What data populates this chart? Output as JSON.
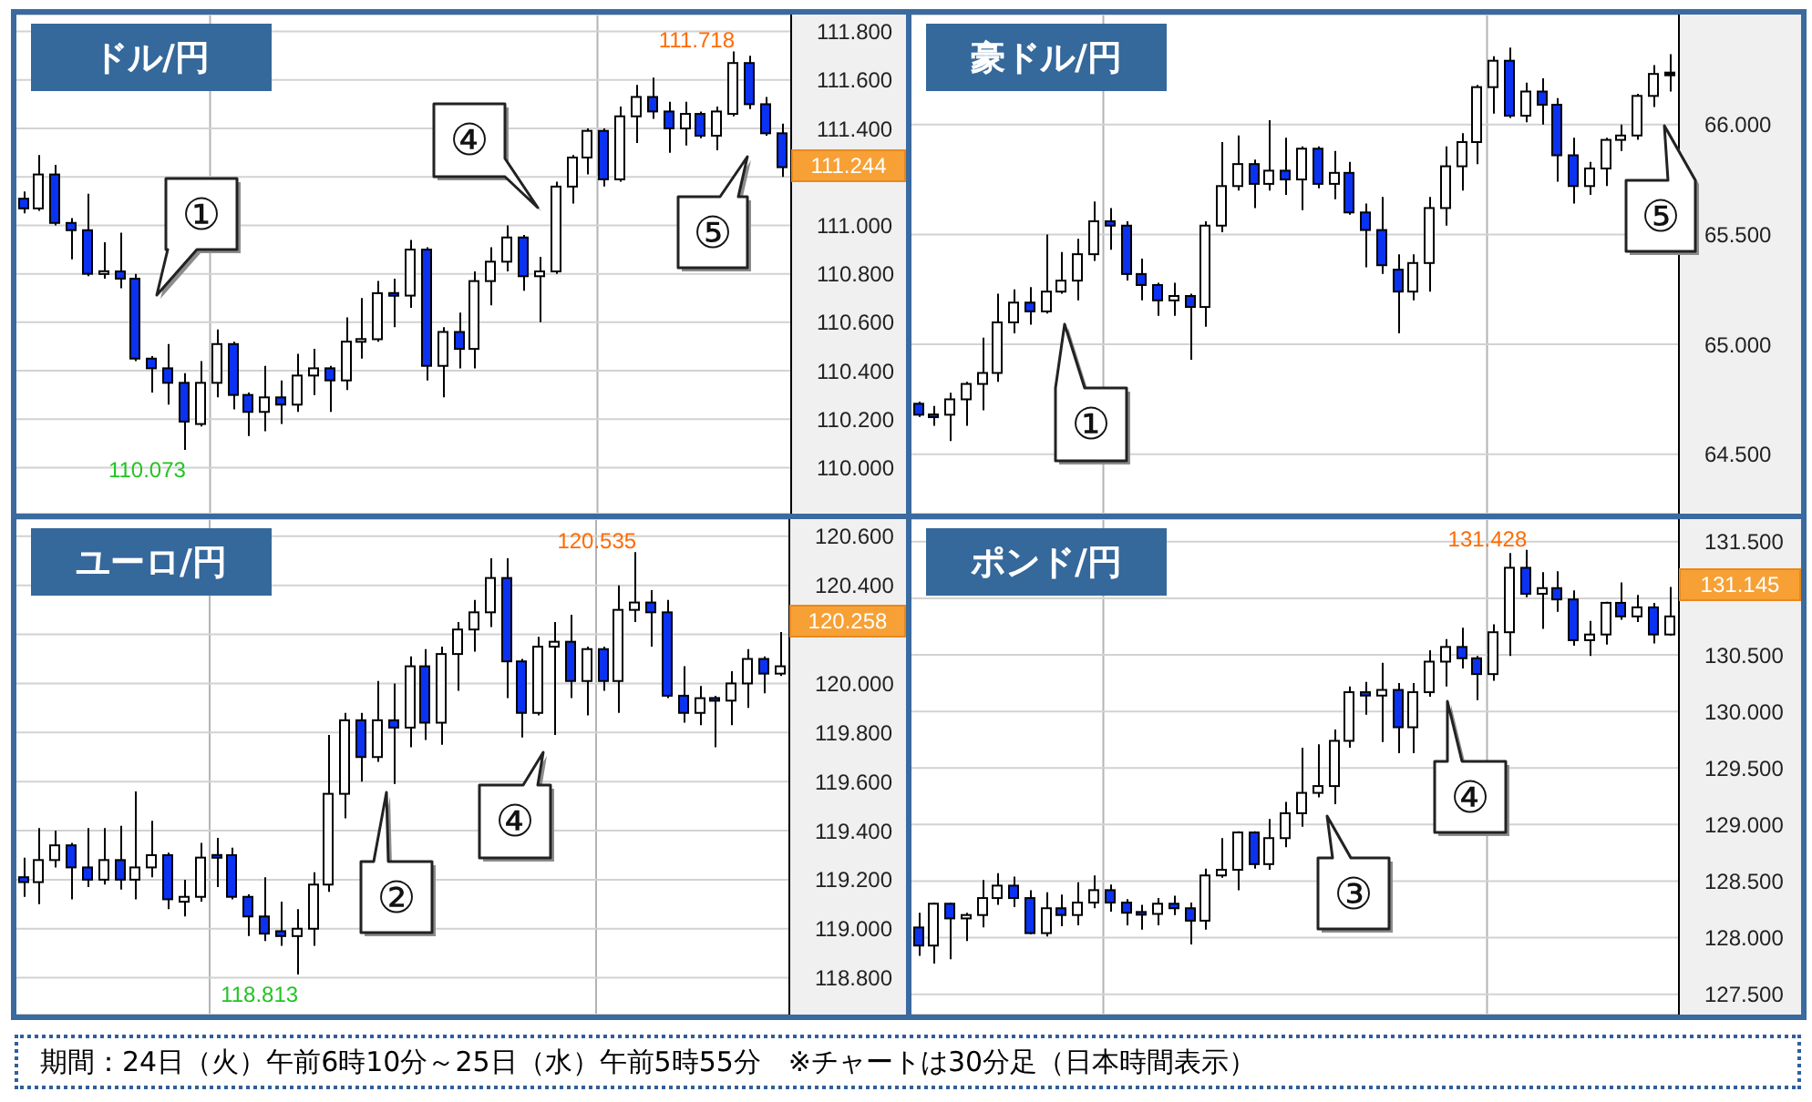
{
  "chart_data": [
    {
      "type": "candlestick",
      "title": "ドル/円",
      "categories": [
        null,
        null,
        null,
        null,
        null,
        null,
        null,
        null,
        null,
        null,
        null,
        null,
        null,
        null,
        null,
        null,
        null,
        null,
        null,
        null,
        null,
        null,
        null,
        null,
        null,
        null,
        null,
        null,
        null,
        null,
        null,
        null,
        null,
        null,
        null,
        null,
        null,
        null,
        null,
        null,
        null,
        null,
        null,
        null,
        null,
        null,
        null,
        null
      ],
      "ohlc": [
        [
          111.11,
          111.14,
          111.05,
          111.07
        ],
        [
          111.07,
          111.29,
          111.06,
          111.21
        ],
        [
          111.21,
          111.25,
          111.0,
          111.01
        ],
        [
          111.01,
          111.03,
          110.86,
          110.98
        ],
        [
          110.98,
          111.13,
          110.79,
          110.8
        ],
        [
          110.8,
          110.93,
          110.78,
          110.81
        ],
        [
          110.81,
          110.97,
          110.74,
          110.78
        ],
        [
          110.78,
          110.8,
          110.44,
          110.45
        ],
        [
          110.45,
          110.46,
          110.31,
          110.41
        ],
        [
          110.41,
          110.51,
          110.26,
          110.35
        ],
        [
          110.35,
          110.39,
          110.073,
          110.19
        ],
        [
          110.18,
          110.44,
          110.17,
          110.35
        ],
        [
          110.35,
          110.57,
          110.29,
          110.51
        ],
        [
          110.51,
          110.52,
          110.24,
          110.3
        ],
        [
          110.3,
          110.31,
          110.13,
          110.23
        ],
        [
          110.23,
          110.42,
          110.15,
          110.29
        ],
        [
          110.29,
          110.36,
          110.18,
          110.26
        ],
        [
          110.26,
          110.47,
          110.23,
          110.38
        ],
        [
          110.38,
          110.49,
          110.3,
          110.41
        ],
        [
          110.41,
          110.42,
          110.23,
          110.36
        ],
        [
          110.36,
          110.62,
          110.32,
          110.52
        ],
        [
          110.52,
          110.7,
          110.45,
          110.53
        ],
        [
          110.53,
          110.77,
          110.52,
          110.72
        ],
        [
          110.72,
          110.78,
          110.58,
          110.71
        ],
        [
          110.71,
          110.94,
          110.66,
          110.9
        ],
        [
          110.9,
          110.91,
          110.36,
          110.42
        ],
        [
          110.42,
          110.58,
          110.29,
          110.56
        ],
        [
          110.56,
          110.64,
          110.41,
          110.49
        ],
        [
          110.49,
          110.81,
          110.41,
          110.77
        ],
        [
          110.77,
          110.91,
          110.67,
          110.85
        ],
        [
          110.85,
          111.0,
          110.81,
          110.95
        ],
        [
          110.95,
          110.96,
          110.73,
          110.79
        ],
        [
          110.79,
          110.87,
          110.6,
          110.81
        ],
        [
          110.81,
          111.18,
          110.8,
          111.16
        ],
        [
          111.16,
          111.29,
          111.09,
          111.28
        ],
        [
          111.28,
          111.4,
          111.21,
          111.39
        ],
        [
          111.39,
          111.4,
          111.16,
          111.19
        ],
        [
          111.19,
          111.49,
          111.18,
          111.45
        ],
        [
          111.45,
          111.58,
          111.34,
          111.53
        ],
        [
          111.53,
          111.61,
          111.44,
          111.47
        ],
        [
          111.47,
          111.51,
          111.3,
          111.4
        ],
        [
          111.4,
          111.51,
          111.33,
          111.46
        ],
        [
          111.46,
          111.47,
          111.36,
          111.37
        ],
        [
          111.37,
          111.49,
          111.31,
          111.47
        ],
        [
          111.46,
          111.718,
          111.45,
          111.67
        ],
        [
          111.67,
          111.7,
          111.48,
          111.5
        ],
        [
          111.5,
          111.53,
          111.37,
          111.38
        ],
        [
          111.38,
          111.42,
          111.2,
          111.24
        ]
      ],
      "ylim": [
        109.81,
        111.87
      ],
      "yticks": [
        {
          "value": 110,
          "label": "110.000"
        },
        {
          "value": 110.2,
          "label": "110.200"
        },
        {
          "value": 110.4,
          "label": "110.400"
        },
        {
          "value": 110.6,
          "label": "110.600"
        },
        {
          "value": 110.8,
          "label": "110.800"
        },
        {
          "value": 111,
          "label": "111.000"
        },
        {
          "value": 111.2,
          "label": null
        },
        {
          "value": 111.4,
          "label": "111.400"
        },
        {
          "value": 111.6,
          "label": "111.600"
        },
        {
          "value": 111.8,
          "label": "111.800"
        }
      ],
      "tick_labels": "y",
      "grid": "y",
      "annotations": [
        "①",
        "④",
        "⑤",
        "111.718",
        "110.073",
        "111.244"
      ]
    },
    {
      "type": "candlestick",
      "title": "豪ドル/円",
      "categories": [
        null,
        null,
        null,
        null,
        null,
        null,
        null,
        null,
        null,
        null,
        null,
        null,
        null,
        null,
        null,
        null,
        null,
        null,
        null,
        null,
        null,
        null,
        null,
        null,
        null,
        null,
        null,
        null,
        null,
        null,
        null,
        null,
        null,
        null,
        null,
        null,
        null,
        null,
        null,
        null,
        null,
        null,
        null,
        null,
        null,
        null,
        null,
        null
      ],
      "ohlc": [
        [
          64.73,
          64.74,
          64.67,
          64.68
        ],
        [
          64.68,
          64.72,
          64.63,
          64.67
        ],
        [
          64.68,
          64.78,
          64.56,
          64.75
        ],
        [
          64.75,
          64.83,
          64.63,
          64.82
        ],
        [
          64.82,
          65.03,
          64.7,
          64.87
        ],
        [
          64.87,
          65.23,
          64.83,
          65.1
        ],
        [
          65.1,
          65.25,
          65.05,
          65.19
        ],
        [
          65.19,
          65.26,
          65.09,
          65.15
        ],
        [
          65.15,
          65.5,
          65.14,
          65.24
        ],
        [
          65.24,
          65.42,
          65.23,
          65.29
        ],
        [
          65.29,
          65.48,
          65.2,
          65.41
        ],
        [
          65.41,
          65.65,
          65.38,
          65.56
        ],
        [
          65.56,
          65.62,
          65.43,
          65.54
        ],
        [
          65.54,
          65.56,
          65.29,
          65.32
        ],
        [
          65.32,
          65.39,
          65.2,
          65.27
        ],
        [
          65.27,
          65.28,
          65.13,
          65.2
        ],
        [
          65.2,
          65.28,
          65.13,
          65.22
        ],
        [
          65.22,
          65.23,
          64.93,
          65.17
        ],
        [
          65.17,
          65.56,
          65.08,
          65.54
        ],
        [
          65.54,
          65.92,
          65.51,
          65.72
        ],
        [
          65.72,
          65.95,
          65.7,
          65.82
        ],
        [
          65.82,
          65.84,
          65.62,
          65.73
        ],
        [
          65.73,
          66.02,
          65.7,
          65.79
        ],
        [
          65.79,
          65.94,
          65.68,
          65.75
        ],
        [
          65.75,
          65.9,
          65.61,
          65.89
        ],
        [
          65.89,
          65.9,
          65.71,
          65.73
        ],
        [
          65.73,
          65.88,
          65.66,
          65.78
        ],
        [
          65.78,
          65.83,
          65.59,
          65.6
        ],
        [
          65.6,
          65.64,
          65.35,
          65.52
        ],
        [
          65.52,
          65.67,
          65.32,
          65.36
        ],
        [
          65.34,
          65.41,
          65.05,
          65.24
        ],
        [
          65.24,
          65.41,
          65.2,
          65.37
        ],
        [
          65.37,
          65.67,
          65.24,
          65.62
        ],
        [
          65.62,
          65.9,
          65.54,
          65.81
        ],
        [
          65.81,
          65.96,
          65.7,
          65.92
        ],
        [
          65.92,
          66.18,
          65.82,
          66.17
        ],
        [
          66.17,
          66.31,
          66.05,
          66.29
        ],
        [
          66.29,
          66.35,
          66.03,
          66.04
        ],
        [
          66.04,
          66.19,
          66.01,
          66.15
        ],
        [
          66.15,
          66.21,
          66.0,
          66.09
        ],
        [
          66.09,
          66.12,
          65.74,
          65.86
        ],
        [
          65.86,
          65.94,
          65.64,
          65.72
        ],
        [
          65.72,
          65.83,
          65.68,
          65.8
        ],
        [
          65.8,
          65.94,
          65.72,
          65.93
        ],
        [
          65.93,
          66.0,
          65.88,
          65.95
        ],
        [
          65.95,
          66.14,
          65.93,
          66.13
        ],
        [
          66.13,
          66.27,
          66.08,
          66.23
        ],
        [
          66.23,
          66.32,
          66.15,
          66.23
        ]
      ],
      "ylim": [
        64.23,
        66.5
      ],
      "yticks": [
        {
          "value": 64.5,
          "label": "64.500"
        },
        {
          "value": 65,
          "label": "65.000"
        },
        {
          "value": 65.5,
          "label": "65.500"
        },
        {
          "value": 66,
          "label": "66.000"
        }
      ],
      "tick_labels": "y",
      "grid": "y",
      "annotations": [
        "①",
        "⑤"
      ]
    },
    {
      "type": "candlestick",
      "title": "ユーロ/円",
      "categories": [
        null,
        null,
        null,
        null,
        null,
        null,
        null,
        null,
        null,
        null,
        null,
        null,
        null,
        null,
        null,
        null,
        null,
        null,
        null,
        null,
        null,
        null,
        null,
        null,
        null,
        null,
        null,
        null,
        null,
        null,
        null,
        null,
        null,
        null,
        null,
        null,
        null,
        null,
        null,
        null,
        null,
        null,
        null,
        null,
        null,
        null,
        null,
        null
      ],
      "ohlc": [
        [
          119.21,
          119.29,
          119.13,
          119.19
        ],
        [
          119.19,
          119.41,
          119.1,
          119.28
        ],
        [
          119.28,
          119.4,
          119.25,
          119.34
        ],
        [
          119.34,
          119.35,
          119.12,
          119.25
        ],
        [
          119.25,
          119.41,
          119.17,
          119.2
        ],
        [
          119.2,
          119.41,
          119.18,
          119.28
        ],
        [
          119.28,
          119.42,
          119.16,
          119.2
        ],
        [
          119.2,
          119.56,
          119.12,
          119.25
        ],
        [
          119.25,
          119.44,
          119.21,
          119.3
        ],
        [
          119.3,
          119.31,
          119.08,
          119.12
        ],
        [
          119.11,
          119.2,
          119.05,
          119.13
        ],
        [
          119.13,
          119.35,
          119.11,
          119.29
        ],
        [
          119.3,
          119.37,
          119.17,
          119.29
        ],
        [
          119.3,
          119.33,
          119.12,
          119.13
        ],
        [
          119.13,
          119.14,
          118.97,
          119.05
        ],
        [
          119.05,
          119.21,
          118.95,
          118.98
        ],
        [
          118.99,
          119.11,
          118.93,
          118.97
        ],
        [
          118.97,
          119.08,
          118.813,
          119.0
        ],
        [
          119.0,
          119.23,
          118.93,
          119.18
        ],
        [
          119.18,
          119.79,
          119.15,
          119.55
        ],
        [
          119.55,
          119.88,
          119.45,
          119.85
        ],
        [
          119.85,
          119.88,
          119.6,
          119.7
        ],
        [
          119.7,
          120.01,
          119.68,
          119.85
        ],
        [
          119.85,
          120.0,
          119.59,
          119.82
        ],
        [
          119.82,
          120.11,
          119.74,
          120.07
        ],
        [
          120.07,
          120.14,
          119.77,
          119.84
        ],
        [
          119.84,
          120.15,
          119.75,
          120.12
        ],
        [
          120.12,
          120.25,
          119.97,
          120.22
        ],
        [
          120.22,
          120.34,
          120.13,
          120.29
        ],
        [
          120.29,
          120.51,
          120.23,
          120.43
        ],
        [
          120.43,
          120.51,
          119.94,
          120.09
        ],
        [
          120.09,
          120.1,
          119.78,
          119.88
        ],
        [
          119.88,
          120.19,
          119.87,
          120.15
        ],
        [
          120.15,
          120.25,
          119.79,
          120.17
        ],
        [
          120.17,
          120.28,
          119.94,
          120.01
        ],
        [
          120.01,
          120.15,
          119.87,
          120.14
        ],
        [
          120.14,
          120.15,
          119.97,
          120.01
        ],
        [
          120.01,
          120.4,
          119.88,
          120.3
        ],
        [
          120.3,
          120.535,
          120.25,
          120.33
        ],
        [
          120.33,
          120.38,
          120.15,
          120.29
        ],
        [
          120.29,
          120.34,
          119.94,
          119.95
        ],
        [
          119.95,
          120.07,
          119.84,
          119.88
        ],
        [
          119.88,
          119.99,
          119.83,
          119.94
        ],
        [
          119.94,
          119.95,
          119.74,
          119.93
        ],
        [
          119.93,
          120.05,
          119.83,
          120.0
        ],
        [
          120.0,
          120.14,
          119.9,
          120.1
        ],
        [
          120.1,
          120.11,
          119.96,
          120.04
        ],
        [
          120.04,
          120.21,
          120.03,
          120.07
        ]
      ],
      "ylim": [
        118.65,
        120.67
      ],
      "yticks": [
        {
          "value": 118.8,
          "label": "118.800"
        },
        {
          "value": 119,
          "label": "119.000"
        },
        {
          "value": 119.2,
          "label": "119.200"
        },
        {
          "value": 119.4,
          "label": "119.400"
        },
        {
          "value": 119.6,
          "label": "119.600"
        },
        {
          "value": 119.8,
          "label": "119.800"
        },
        {
          "value": 120,
          "label": "120.000"
        },
        {
          "value": 120.2,
          "label": null
        },
        {
          "value": 120.4,
          "label": "120.400"
        },
        {
          "value": 120.6,
          "label": "120.600"
        }
      ],
      "tick_labels": "y",
      "grid": "y",
      "annotations": [
        "②",
        "④",
        "120.535",
        "118.813",
        "120.258"
      ]
    },
    {
      "type": "candlestick",
      "title": "ポンド/円",
      "categories": [
        null,
        null,
        null,
        null,
        null,
        null,
        null,
        null,
        null,
        null,
        null,
        null,
        null,
        null,
        null,
        null,
        null,
        null,
        null,
        null,
        null,
        null,
        null,
        null,
        null,
        null,
        null,
        null,
        null,
        null,
        null,
        null,
        null,
        null,
        null,
        null,
        null,
        null,
        null,
        null,
        null,
        null,
        null,
        null,
        null,
        null,
        null,
        null
      ],
      "ohlc": [
        [
          128.09,
          128.22,
          127.84,
          127.93
        ],
        [
          127.93,
          128.31,
          127.77,
          128.3
        ],
        [
          128.3,
          128.31,
          127.81,
          128.17
        ],
        [
          128.17,
          128.22,
          127.97,
          128.2
        ],
        [
          128.2,
          128.51,
          128.09,
          128.35
        ],
        [
          128.35,
          128.57,
          128.29,
          128.46
        ],
        [
          128.46,
          128.54,
          128.27,
          128.35
        ],
        [
          128.35,
          128.42,
          128.03,
          128.04
        ],
        [
          128.04,
          128.4,
          128.01,
          128.26
        ],
        [
          128.26,
          128.38,
          128.1,
          128.2
        ],
        [
          128.2,
          128.49,
          128.11,
          128.31
        ],
        [
          128.31,
          128.55,
          128.26,
          128.42
        ],
        [
          128.42,
          128.47,
          128.23,
          128.31
        ],
        [
          128.31,
          128.34,
          128.11,
          128.22
        ],
        [
          128.22,
          128.29,
          128.07,
          128.21
        ],
        [
          128.21,
          128.35,
          128.11,
          128.3
        ],
        [
          128.3,
          128.37,
          128.2,
          128.26
        ],
        [
          128.26,
          128.31,
          127.94,
          128.15
        ],
        [
          128.15,
          128.61,
          128.07,
          128.55
        ],
        [
          128.55,
          128.88,
          128.53,
          128.6
        ],
        [
          128.6,
          128.94,
          128.42,
          128.93
        ],
        [
          128.93,
          128.94,
          128.61,
          128.65
        ],
        [
          128.65,
          129.05,
          128.6,
          128.88
        ],
        [
          128.88,
          129.2,
          128.8,
          129.1
        ],
        [
          129.1,
          129.68,
          128.98,
          129.28
        ],
        [
          129.28,
          129.71,
          129.24,
          129.34
        ],
        [
          129.34,
          129.84,
          129.18,
          129.74
        ],
        [
          129.74,
          130.22,
          129.68,
          130.17
        ],
        [
          130.17,
          130.26,
          129.97,
          130.14
        ],
        [
          130.14,
          130.43,
          129.73,
          130.19
        ],
        [
          130.19,
          130.25,
          129.63,
          129.86
        ],
        [
          129.86,
          130.25,
          129.63,
          130.17
        ],
        [
          130.17,
          130.54,
          130.13,
          130.44
        ],
        [
          130.44,
          130.64,
          130.22,
          130.57
        ],
        [
          130.57,
          130.74,
          130.38,
          130.47
        ],
        [
          130.47,
          130.49,
          130.1,
          130.33
        ],
        [
          130.33,
          130.77,
          130.27,
          130.7
        ],
        [
          130.7,
          131.4,
          130.49,
          131.27
        ],
        [
          131.27,
          131.428,
          131.01,
          131.04
        ],
        [
          131.04,
          131.23,
          130.73,
          131.09
        ],
        [
          131.09,
          131.24,
          130.88,
          130.99
        ],
        [
          130.99,
          131.07,
          130.58,
          130.63
        ],
        [
          130.63,
          130.8,
          130.49,
          130.68
        ],
        [
          130.68,
          130.97,
          130.59,
          130.96
        ],
        [
          130.96,
          131.14,
          130.81,
          130.84
        ],
        [
          130.84,
          131.03,
          130.79,
          130.92
        ],
        [
          130.92,
          130.96,
          130.6,
          130.68
        ],
        [
          130.68,
          131.1,
          130.67,
          130.84
        ]
      ],
      "ylim": [
        127.32,
        131.7
      ],
      "yticks": [
        {
          "value": 127.5,
          "label": "127.500"
        },
        {
          "value": 128,
          "label": "128.000"
        },
        {
          "value": 128.5,
          "label": "128.500"
        },
        {
          "value": 129,
          "label": "129.000"
        },
        {
          "value": 129.5,
          "label": "129.500"
        },
        {
          "value": 130,
          "label": "130.000"
        },
        {
          "value": 130.5,
          "label": "130.500"
        },
        {
          "value": 131,
          "label": null
        },
        {
          "value": 131.5,
          "label": "131.500"
        }
      ],
      "tick_labels": "y",
      "grid": "y",
      "annotations": [
        "③",
        "④",
        "131.428",
        "131.145",
        "期間：24日（火）午前6時10分～25日（水）午前5時55分　※チャートは30分足（日本時間表示）"
      ]
    }
  ]
}
